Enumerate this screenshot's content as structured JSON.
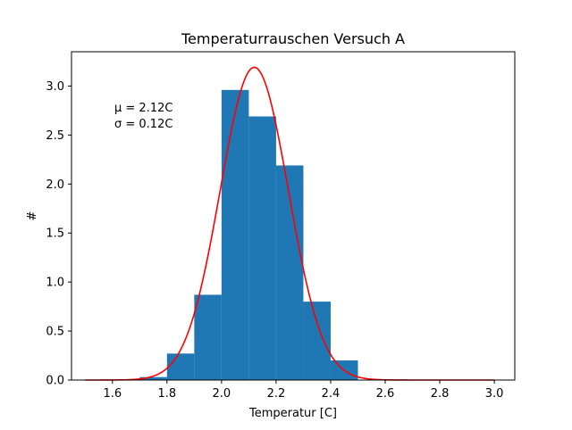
{
  "colors": {
    "bars": "#1f77b4",
    "fit_line": "#ff0000",
    "axes": "#000000",
    "background": "#ffffff"
  },
  "chart_data": {
    "type": "bar",
    "title": "Temperaturrauschen Versuch A",
    "xlabel": "Temperatur [C]",
    "ylabel": "#",
    "xlim": [
      1.45,
      3.075
    ],
    "ylim": [
      0,
      3.35
    ],
    "xticks": [
      "1.6",
      "1.8",
      "2.0",
      "2.2",
      "2.4",
      "2.6",
      "2.8",
      "3.0"
    ],
    "yticks": [
      "0.0",
      "0.5",
      "1.0",
      "1.5",
      "2.0",
      "2.5",
      "3.0"
    ],
    "bin_width": 0.1,
    "bins": [
      {
        "x0": 1.7,
        "x1": 1.8,
        "value": 0.03
      },
      {
        "x0": 1.8,
        "x1": 1.9,
        "value": 0.27
      },
      {
        "x0": 1.9,
        "x1": 2.0,
        "value": 0.87
      },
      {
        "x0": 2.0,
        "x1": 2.1,
        "value": 2.96
      },
      {
        "x0": 2.1,
        "x1": 2.2,
        "value": 2.69
      },
      {
        "x0": 2.2,
        "x1": 2.3,
        "value": 2.19
      },
      {
        "x0": 2.3,
        "x1": 2.4,
        "value": 0.8
      },
      {
        "x0": 2.4,
        "x1": 2.5,
        "value": 0.2
      }
    ],
    "fit": {
      "type": "gaussian",
      "mu": 2.12,
      "sigma": 0.125,
      "x_range": [
        1.5,
        3.0
      ]
    },
    "annotation_lines": [
      "μ = 2.12C",
      "σ = 0.12C"
    ],
    "grid": false,
    "legend": "none"
  }
}
